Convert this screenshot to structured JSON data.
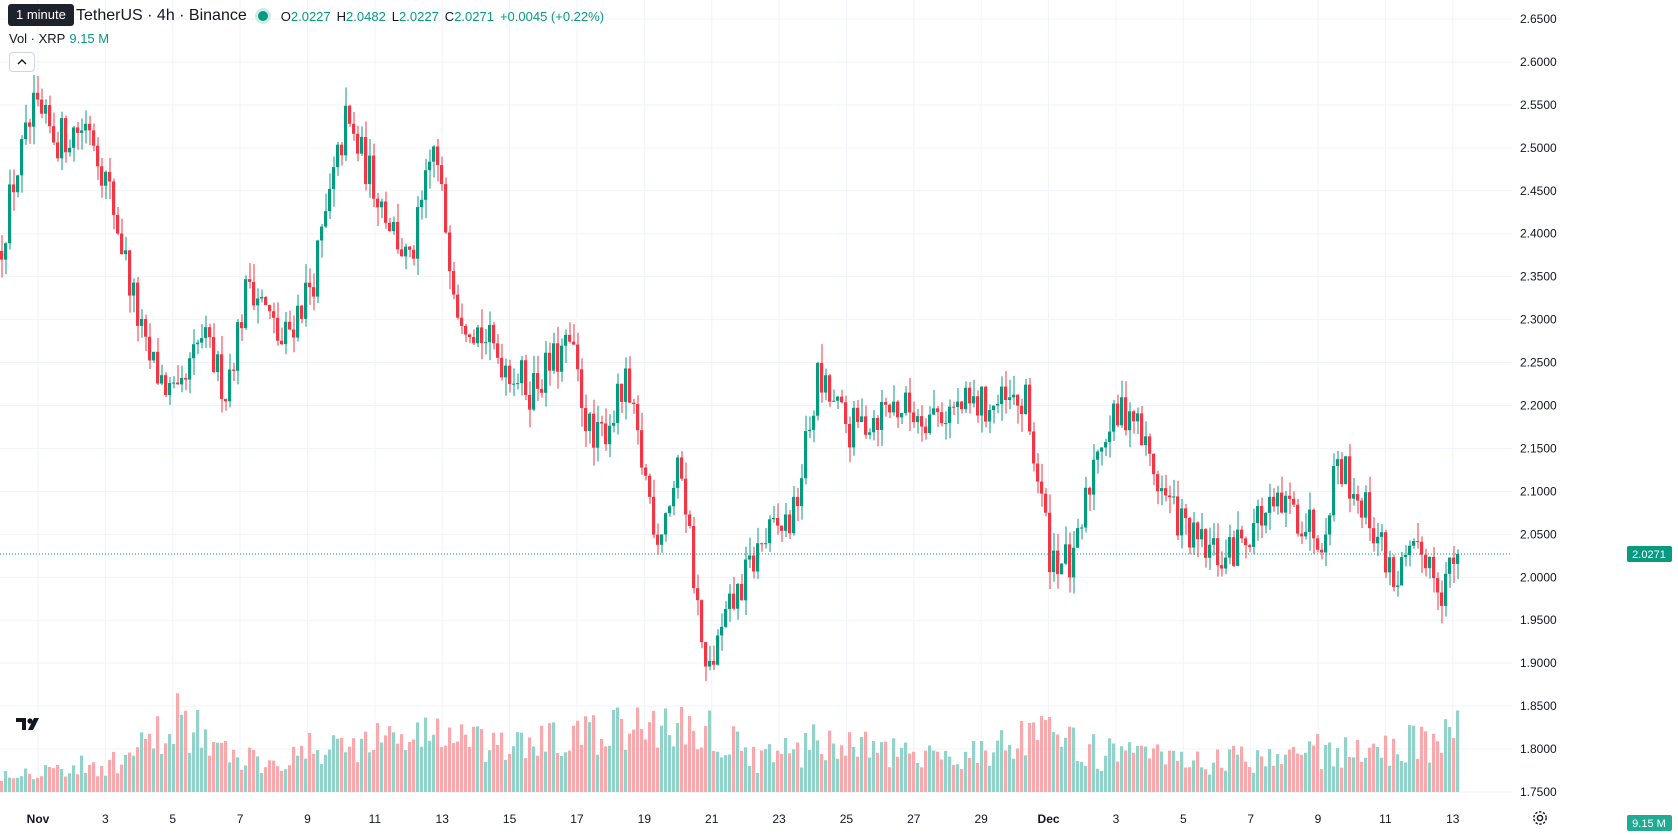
{
  "tooltip": "1 minute",
  "symbol": {
    "name": "TetherUS · 4h · Binance"
  },
  "ohlc": {
    "o_label": "O",
    "o": "2.0227",
    "h_label": "H",
    "h": "2.0482",
    "l_label": "L",
    "l": "2.0227",
    "c_label": "C",
    "c": "2.0271",
    "change": "+0.0045 (+0.22%)"
  },
  "volume": {
    "label": "Vol · XRP",
    "value": "9.15 M"
  },
  "price_badge": "2.0271",
  "volume_badge": "9.15 M",
  "colors": {
    "up": "#089981",
    "down": "#f23645",
    "up_vol": "#93d2c8",
    "down_vol": "#f7a9ae",
    "grid": "#f0f3fa"
  },
  "icons": [
    "chevron-up-icon",
    "tradingview-logo-icon",
    "gear-icon"
  ],
  "chart_data": {
    "type": "candlestick",
    "ylim": [
      1.75,
      2.65
    ],
    "y_ticks": [
      "2.6500",
      "2.6000",
      "2.5500",
      "2.5000",
      "2.4500",
      "2.4000",
      "2.3500",
      "2.3000",
      "2.2500",
      "2.2000",
      "2.1500",
      "2.1000",
      "2.0500",
      "2.0000",
      "1.9500",
      "1.9000",
      "1.8500",
      "1.8000",
      "1.7500"
    ],
    "x_ticks": [
      "Nov",
      "3",
      "5",
      "7",
      "9",
      "11",
      "13",
      "15",
      "17",
      "19",
      "21",
      "23",
      "25",
      "27",
      "29",
      "Dec",
      "3",
      "5",
      "7",
      "9",
      "11",
      "13"
    ],
    "last_price": 2.0271,
    "close_anchors": [
      [
        0,
        2.39
      ],
      [
        3,
        2.46
      ],
      [
        8,
        2.54
      ],
      [
        14,
        2.51
      ],
      [
        22,
        2.53
      ],
      [
        28,
        2.43
      ],
      [
        36,
        2.26
      ],
      [
        44,
        2.2
      ],
      [
        50,
        2.28
      ],
      [
        56,
        2.22
      ],
      [
        62,
        2.35
      ],
      [
        70,
        2.27
      ],
      [
        78,
        2.35
      ],
      [
        86,
        2.53
      ],
      [
        94,
        2.45
      ],
      [
        102,
        2.36
      ],
      [
        108,
        2.5
      ],
      [
        114,
        2.32
      ],
      [
        122,
        2.27
      ],
      [
        132,
        2.22
      ],
      [
        142,
        2.27
      ],
      [
        148,
        2.15
      ],
      [
        156,
        2.22
      ],
      [
        164,
        2.05
      ],
      [
        170,
        2.13
      ],
      [
        176,
        1.88
      ],
      [
        182,
        1.96
      ],
      [
        190,
        2.04
      ],
      [
        198,
        2.07
      ],
      [
        204,
        2.23
      ],
      [
        212,
        2.17
      ],
      [
        222,
        2.2
      ],
      [
        232,
        2.19
      ],
      [
        244,
        2.2
      ],
      [
        256,
        2.2
      ],
      [
        262,
        2.03
      ],
      [
        268,
        2.01
      ],
      [
        274,
        2.16
      ],
      [
        282,
        2.2
      ],
      [
        290,
        2.1
      ],
      [
        298,
        2.04
      ],
      [
        306,
        2.02
      ],
      [
        314,
        2.07
      ],
      [
        322,
        2.08
      ],
      [
        330,
        2.05
      ],
      [
        334,
        2.14
      ],
      [
        342,
        2.07
      ],
      [
        348,
        2.0
      ],
      [
        356,
        2.03
      ],
      [
        360,
        1.99
      ],
      [
        364,
        2.0271
      ]
    ],
    "volume_anchors": [
      [
        0,
        3.0
      ],
      [
        30,
        4.5
      ],
      [
        40,
        9.0
      ],
      [
        44,
        12.5
      ],
      [
        55,
        6.0
      ],
      [
        65,
        5.0
      ],
      [
        86,
        7.5
      ],
      [
        110,
        9.5
      ],
      [
        122,
        6.5
      ],
      [
        150,
        9.0
      ],
      [
        165,
        10.5
      ],
      [
        178,
        9.5
      ],
      [
        190,
        5.0
      ],
      [
        206,
        8.0
      ],
      [
        230,
        5.0
      ],
      [
        262,
        8.5
      ],
      [
        275,
        6.0
      ],
      [
        300,
        4.5
      ],
      [
        330,
        6.5
      ],
      [
        342,
        6.0
      ],
      [
        364,
        9.15
      ]
    ],
    "volume_max": 22.0
  }
}
